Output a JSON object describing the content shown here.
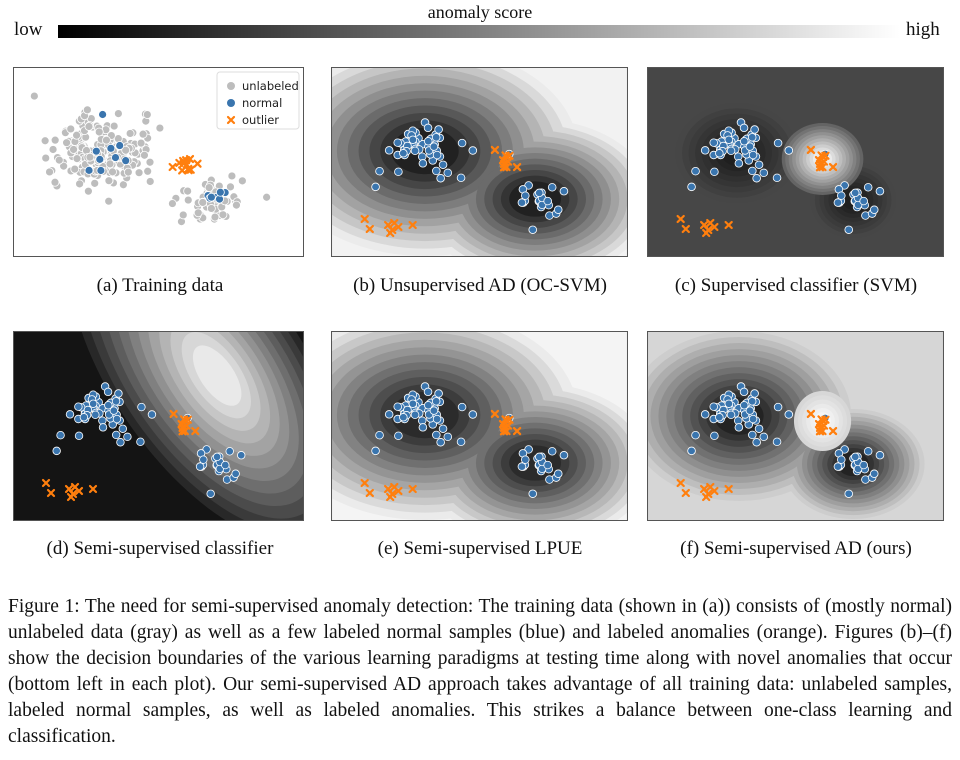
{
  "colorbar": {
    "title": "anomaly score",
    "low_label": "low",
    "high_label": "high"
  },
  "legend": {
    "unlabeled": "unlabeled",
    "normal": "normal",
    "outlier": "outlier"
  },
  "colors": {
    "unlabeled": "#bdbdbd",
    "normal": "#3a75ae",
    "outlier": "#ff7f0e"
  },
  "panels": [
    {
      "id": "a",
      "caption": "(a)  Training data"
    },
    {
      "id": "b",
      "caption": "(b)  Unsupervised AD (OC-SVM)"
    },
    {
      "id": "c",
      "caption": "(c)  Supervised classifier (SVM)"
    },
    {
      "id": "d",
      "caption": "(d)  Semi-supervised classifier"
    },
    {
      "id": "e",
      "caption": "(e)  Semi-supervised LPUE"
    },
    {
      "id": "f",
      "caption": "(f)  Semi-supervised AD (ours)"
    }
  ],
  "caption": "Figure 1: The need for semi-supervised anomaly detection: The training data (shown in (a)) consists of (mostly normal) unlabeled data (gray) as well as a few labeled normal samples (blue) and labeled anomalies (orange). Figures (b)–(f) show the decision boundaries of the various learning paradigms at testing time along with novel anomalies that occur (bottom left in each plot). Our semi-supervised AD approach takes advantage of all training data: unlabeled samples, labeled normal samples, as well as labeled anomalies. This strikes a balance between one-class learning and classification."
}
